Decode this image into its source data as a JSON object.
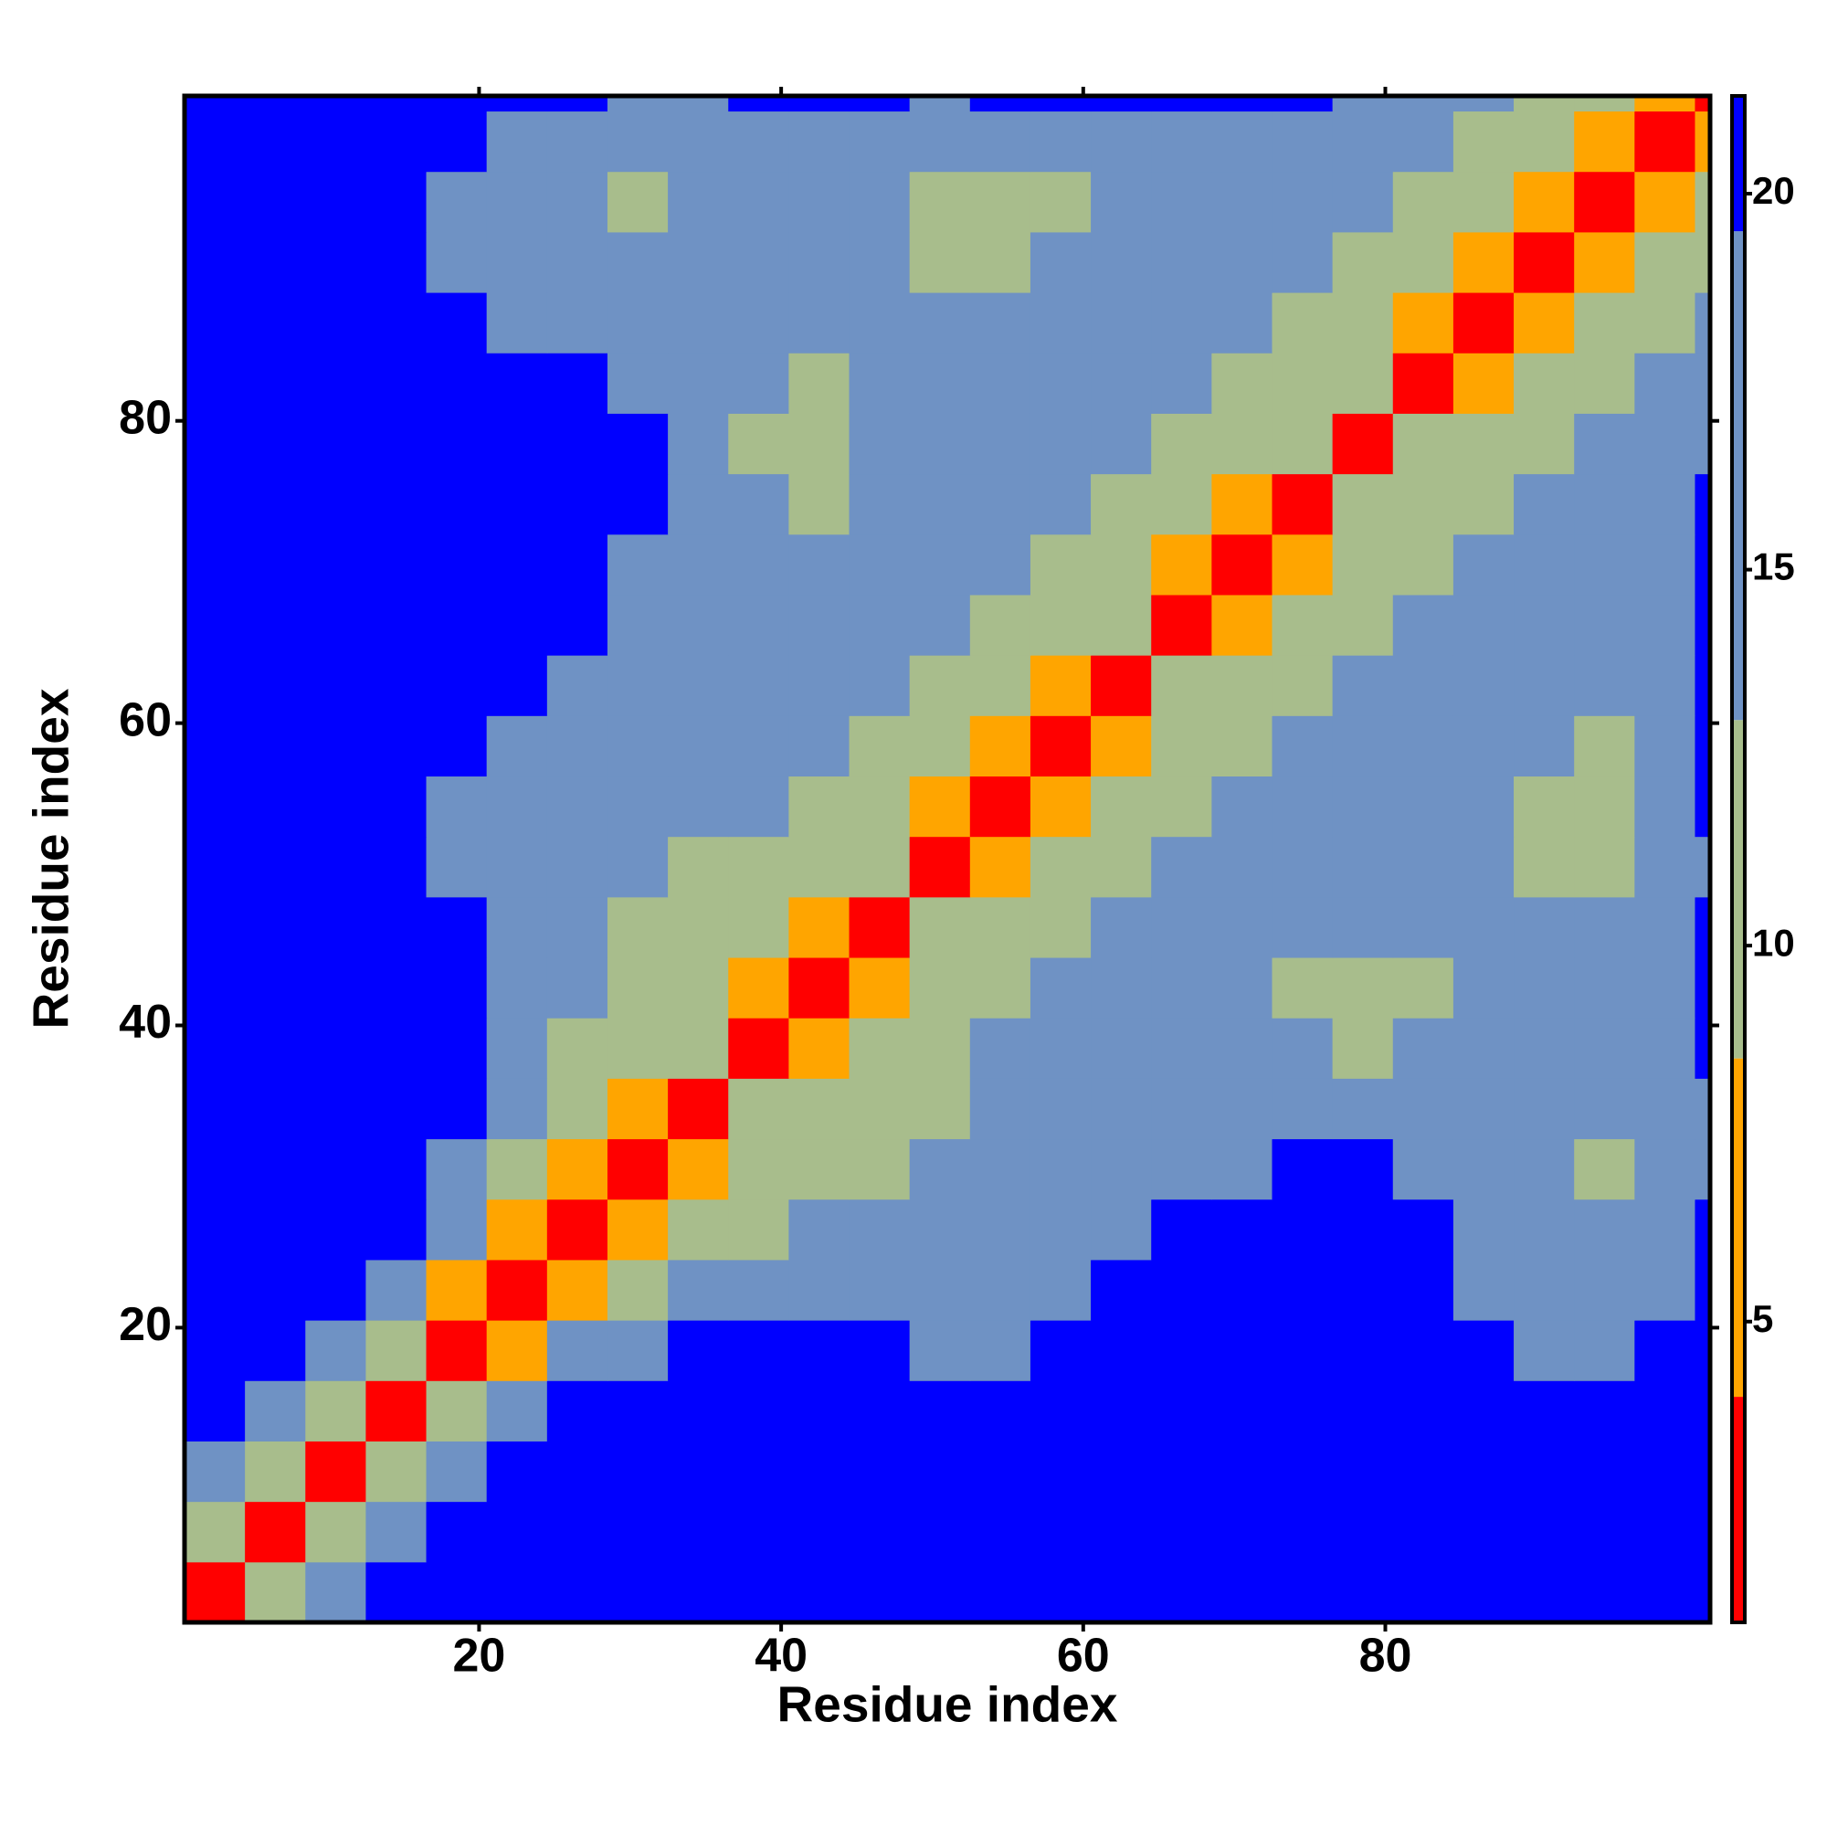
{
  "chart_data": {
    "type": "heatmap",
    "xlabel": "Residue index",
    "ylabel": "Residue index",
    "xlim": [
      0.5,
      101.5
    ],
    "ylim": [
      0.5,
      101.5
    ],
    "xticks": [
      20,
      40,
      60,
      80
    ],
    "yticks": [
      20,
      40,
      60,
      80
    ],
    "xbins": [
      0.5,
      4.5,
      8.5,
      12.5,
      16.5,
      20.5,
      24.5,
      28.5,
      32.5,
      36.5,
      40.5,
      44.5,
      48.5,
      52.5,
      56.5,
      60.5,
      64.5,
      68.5,
      72.5,
      76.5,
      80.5,
      84.5,
      88.5,
      92.5,
      96.5,
      100.5,
      101.5
    ],
    "ybins": [
      0.5,
      4.5,
      8.5,
      12.5,
      16.5,
      20.5,
      24.5,
      28.5,
      32.5,
      36.5,
      40.5,
      44.5,
      48.5,
      52.5,
      56.5,
      60.5,
      64.5,
      68.5,
      72.5,
      76.5,
      80.5,
      84.5,
      88.5,
      92.5,
      96.5,
      100.5,
      101.5
    ],
    "zlim": [
      1,
      21.3
    ],
    "zticks": [
      5,
      10,
      15,
      20
    ],
    "colorbounds": [
      4,
      8.5,
      13,
      19.5
    ],
    "colors": [
      "#ff0000",
      "#ffa500",
      "#a8bd8c",
      "#6f92c4",
      "#0000ff"
    ],
    "z": [
      [
        3,
        10,
        16,
        22,
        22,
        22,
        22,
        22,
        22,
        22,
        22,
        22,
        22,
        22,
        22,
        22,
        22,
        22,
        22,
        22,
        22,
        22,
        22,
        22,
        22,
        22
      ],
      [
        10,
        3,
        10,
        16,
        22,
        22,
        22,
        22,
        22,
        22,
        22,
        22,
        22,
        22,
        22,
        22,
        22,
        22,
        22,
        22,
        22,
        22,
        22,
        22,
        22,
        22
      ],
      [
        16,
        10,
        3,
        10,
        15,
        22,
        22,
        22,
        22,
        22,
        22,
        22,
        22,
        22,
        22,
        22,
        22,
        22,
        22,
        22,
        22,
        22,
        22,
        22,
        22,
        22
      ],
      [
        22,
        16,
        10,
        3,
        9,
        15,
        22,
        22,
        22,
        22,
        22,
        22,
        22,
        22,
        22,
        22,
        22,
        22,
        22,
        22,
        22,
        22,
        22,
        20,
        22,
        22
      ],
      [
        22,
        22,
        15,
        9,
        3,
        8,
        14,
        17,
        22,
        22,
        22,
        22,
        19,
        19,
        22,
        22,
        22,
        22,
        22,
        22,
        22,
        22,
        19,
        18,
        20,
        22
      ],
      [
        22,
        22,
        22,
        15,
        8,
        3,
        8,
        12,
        15,
        17,
        19,
        18,
        17,
        18,
        19,
        22,
        22,
        22,
        22,
        22,
        22,
        18,
        16,
        14,
        17,
        20
      ],
      [
        22,
        22,
        22,
        22,
        14,
        8,
        3,
        8,
        12,
        13,
        15,
        15,
        16,
        17,
        18,
        19,
        21,
        20,
        22,
        22,
        21,
        18,
        15,
        14,
        16,
        20
      ],
      [
        22,
        22,
        22,
        22,
        17,
        12,
        8,
        3,
        8,
        11,
        13,
        13,
        14,
        15,
        16,
        18,
        19,
        19,
        21,
        20,
        19,
        16,
        14,
        13,
        15,
        19
      ],
      [
        22,
        22,
        22,
        22,
        22,
        15,
        12,
        8,
        3,
        9,
        11,
        12,
        13,
        14,
        15,
        16,
        17,
        18,
        19,
        17,
        17,
        16,
        15,
        15,
        16,
        19
      ],
      [
        22,
        22,
        22,
        22,
        22,
        17,
        13,
        11,
        9,
        3,
        7,
        9,
        11,
        14,
        15,
        16,
        16,
        16,
        14,
        11,
        14,
        15,
        16,
        17,
        18,
        21
      ],
      [
        22,
        22,
        22,
        22,
        22,
        19,
        15,
        13,
        11,
        7,
        3,
        7,
        11,
        13,
        15,
        15,
        16,
        15,
        13,
        11,
        13,
        15,
        16,
        17,
        17,
        20
      ],
      [
        22,
        22,
        22,
        22,
        22,
        18,
        15,
        13,
        12,
        9,
        7,
        3,
        9,
        11,
        13,
        15,
        16,
        16,
        15,
        14,
        14,
        15,
        14,
        14,
        17,
        20
      ],
      [
        22,
        22,
        22,
        22,
        19,
        17,
        16,
        14,
        13,
        11,
        11,
        9,
        3,
        8,
        11,
        13,
        15,
        16,
        16,
        16,
        15,
        14,
        12,
        11,
        15,
        19
      ],
      [
        22,
        22,
        22,
        22,
        19,
        18,
        17,
        15,
        14,
        14,
        13,
        11,
        8,
        3,
        8,
        11,
        13,
        15,
        16,
        17,
        17,
        15,
        12,
        12,
        16,
        20
      ],
      [
        22,
        22,
        22,
        22,
        22,
        19,
        18,
        16,
        15,
        15,
        15,
        13,
        11,
        8,
        3,
        8,
        10,
        13,
        15,
        16,
        17,
        16,
        14,
        13,
        16,
        20
      ],
      [
        22,
        22,
        22,
        22,
        22,
        22,
        19,
        18,
        16,
        16,
        15,
        15,
        13,
        11,
        8,
        3,
        9,
        10,
        13,
        15,
        16,
        16,
        15,
        15,
        16,
        20
      ],
      [
        22,
        22,
        22,
        22,
        22,
        22,
        21,
        19,
        17,
        16,
        16,
        16,
        15,
        13,
        10,
        9,
        3,
        8,
        10,
        13,
        15,
        16,
        17,
        16,
        17,
        20
      ],
      [
        22,
        22,
        22,
        22,
        22,
        22,
        20,
        19,
        18,
        16,
        15,
        16,
        16,
        15,
        13,
        10,
        8,
        3,
        8,
        10,
        13,
        15,
        16,
        17,
        18,
        21
      ],
      [
        22,
        22,
        22,
        22,
        22,
        22,
        22,
        21,
        19,
        14,
        13,
        15,
        16,
        16,
        15,
        13,
        10,
        8,
        3,
        9,
        10,
        13,
        15,
        16,
        17,
        21
      ],
      [
        22,
        22,
        22,
        22,
        22,
        22,
        22,
        20,
        17,
        11,
        11,
        14,
        16,
        17,
        16,
        15,
        13,
        10,
        9,
        3,
        9,
        10,
        12,
        14,
        16,
        19
      ],
      [
        22,
        22,
        22,
        22,
        22,
        22,
        21,
        19,
        17,
        14,
        13,
        14,
        15,
        17,
        17,
        16,
        15,
        13,
        10,
        9,
        3,
        8,
        10,
        12,
        14,
        17
      ],
      [
        22,
        22,
        22,
        22,
        22,
        18,
        18,
        16,
        16,
        15,
        15,
        15,
        14,
        15,
        16,
        16,
        16,
        15,
        13,
        10,
        8,
        3,
        7,
        9,
        11,
        14
      ],
      [
        22,
        22,
        22,
        22,
        19,
        16,
        15,
        14,
        15,
        16,
        16,
        14,
        12,
        12,
        14,
        15,
        17,
        16,
        15,
        12,
        10,
        7,
        3,
        7,
        9,
        11
      ],
      [
        22,
        22,
        22,
        20,
        18,
        14,
        14,
        13,
        15,
        17,
        17,
        14,
        11,
        12,
        13,
        15,
        16,
        17,
        16,
        14,
        12,
        9,
        7,
        3,
        8,
        9
      ],
      [
        22,
        22,
        22,
        22,
        20,
        17,
        16,
        15,
        16,
        18,
        17,
        17,
        15,
        16,
        16,
        16,
        17,
        18,
        17,
        16,
        14,
        11,
        9,
        8,
        3,
        6
      ],
      [
        22,
        22,
        22,
        22,
        22,
        20,
        20,
        19,
        19,
        21,
        20,
        20,
        19,
        20,
        20,
        20,
        20,
        21,
        21,
        19,
        17,
        14,
        11,
        9,
        6,
        2
      ]
    ]
  }
}
